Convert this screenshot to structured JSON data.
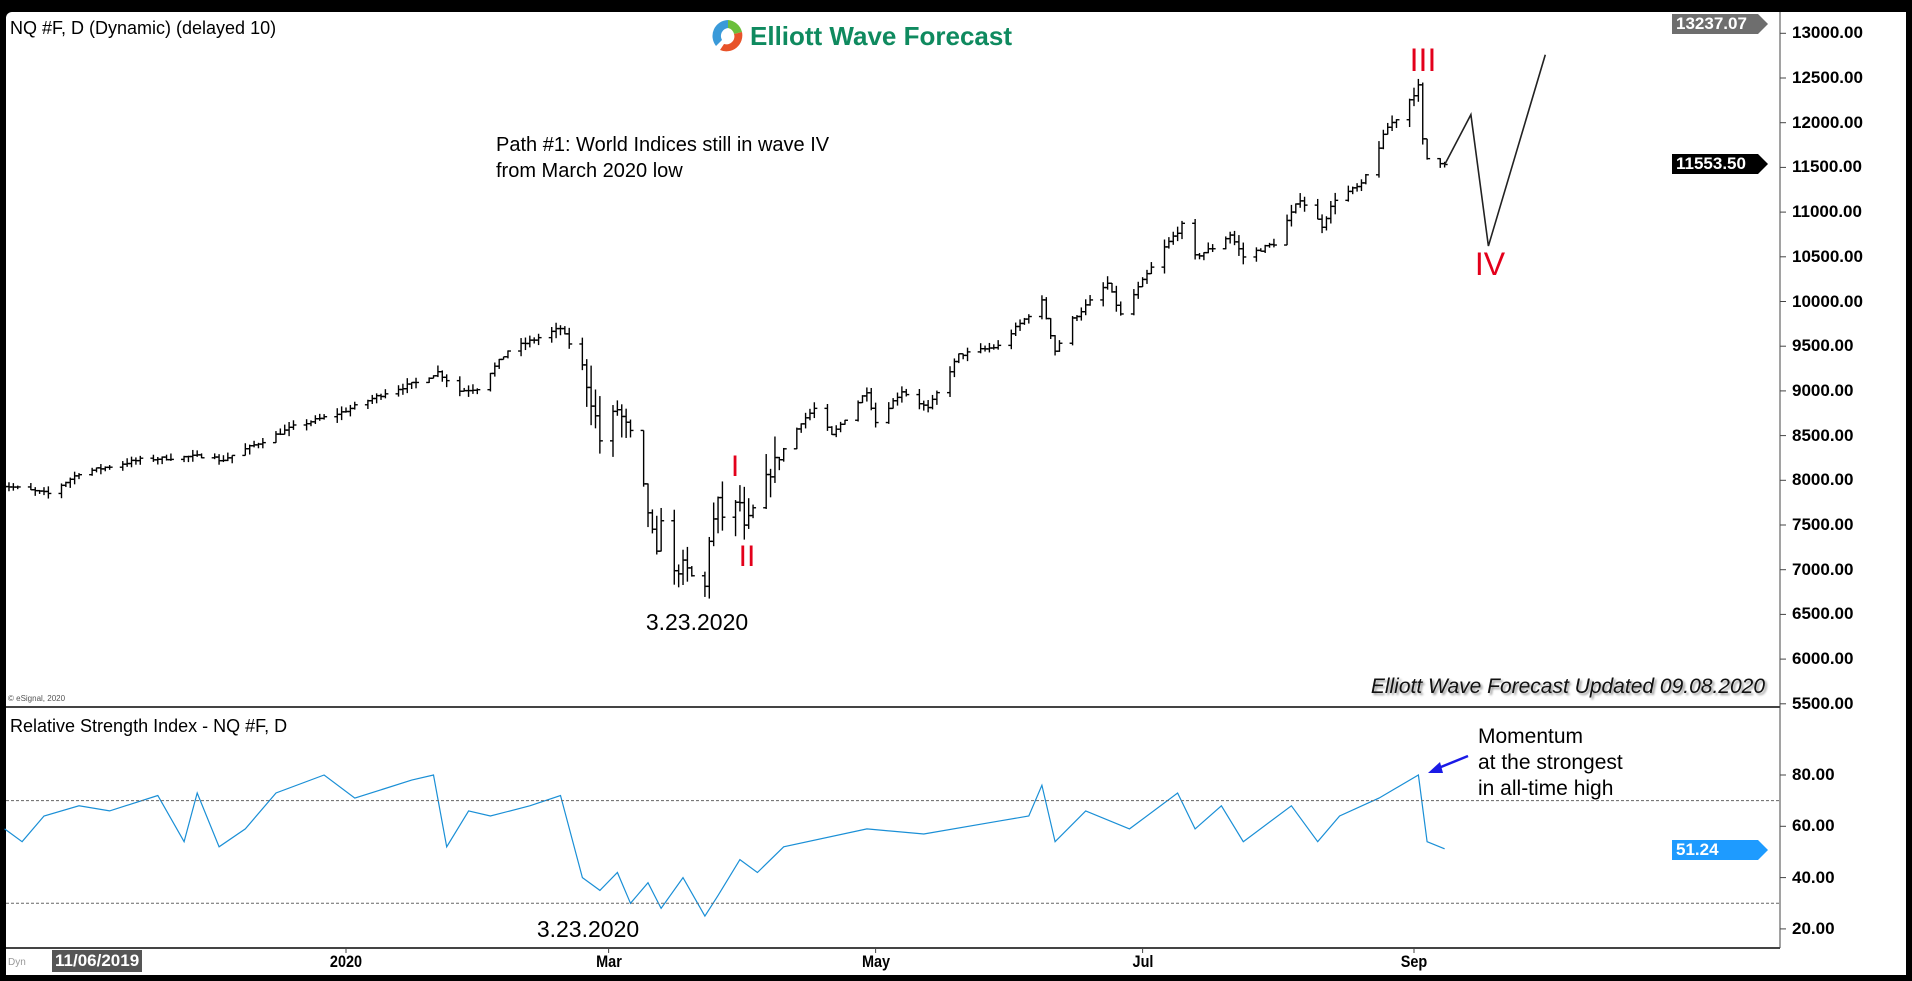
{
  "header": {
    "symbol_title": "NQ #F, D (Dynamic) (delayed 10)",
    "logo_text": "Elliott Wave Forecast",
    "copyright": "© eSignal, 2020",
    "updated_note": "Elliott Wave Forecast Updated 09.08.2020"
  },
  "annotations": {
    "path_line1": "Path #1: World Indices still in wave IV",
    "path_line2": "from March 2020 low",
    "wave_I": "I",
    "wave_II": "II",
    "wave_III": "III",
    "wave_IV": "IV",
    "low_date_price": "3.23.2020",
    "low_date_rsi": "3.23.2020",
    "momentum_line1": "Momentum",
    "momentum_line2": "at the strongest",
    "momentum_line3": "in all-time high"
  },
  "rsi_panel": {
    "title": "Relative Strength Index - NQ #F, D"
  },
  "x_axis": {
    "start_date_box": "11/06/2019",
    "dyn_label": "Dyn",
    "ticks": [
      {
        "label": "2020",
        "date": "2020-01-01"
      },
      {
        "label": "Mar",
        "date": "2020-03-01"
      },
      {
        "label": "May",
        "date": "2020-05-01"
      },
      {
        "label": "Jul",
        "date": "2020-07-01"
      },
      {
        "label": "Sep",
        "date": "2020-09-01"
      }
    ]
  },
  "colors": {
    "bars": "#000000",
    "wave_labels": "#e3001b",
    "rsi_line": "#1a8fd6",
    "rsi_tag": "#1e9bff",
    "arrow": "#1a1ae6",
    "logo_green": "#0f8a5f"
  },
  "chart_data": [
    {
      "type": "ohlc",
      "title": "NQ #F, D (Dynamic) (delayed 10)",
      "y_ticks": [
        "13000.00",
        "12500.00",
        "12000.00",
        "11500.00",
        "11000.00",
        "10500.00",
        "10000.00",
        "9500.00",
        "9000.00",
        "8500.00",
        "8000.00",
        "7500.00",
        "7000.00",
        "6500.00",
        "6000.00",
        "5500.00"
      ],
      "ylim": [
        5500,
        13300
      ],
      "high_tag": "13237.07",
      "last_price_tag": "11553.50",
      "close_anchors": [
        [
          "2019-10-14",
          7950
        ],
        [
          "2019-10-25",
          7850
        ],
        [
          "2019-11-01",
          8080
        ],
        [
          "2019-11-15",
          8230
        ],
        [
          "2019-12-02",
          8280
        ],
        [
          "2019-12-03",
          8210
        ],
        [
          "2019-12-20",
          8600
        ],
        [
          "2019-12-31",
          8760
        ],
        [
          "2020-01-10",
          8980
        ],
        [
          "2020-01-17",
          9090
        ],
        [
          "2020-01-22",
          9210
        ],
        [
          "2020-01-27",
          9000
        ],
        [
          "2020-01-31",
          9030
        ],
        [
          "2020-02-07",
          9450
        ],
        [
          "2020-02-19",
          9700
        ],
        [
          "2020-02-24",
          9280
        ],
        [
          "2020-02-27",
          8700
        ],
        [
          "2020-02-28",
          8450
        ],
        [
          "2020-03-03",
          8800
        ],
        [
          "2020-03-06",
          8500
        ],
        [
          "2020-03-09",
          7900
        ],
        [
          "2020-03-12",
          7150
        ],
        [
          "2020-03-13",
          7600
        ],
        [
          "2020-03-16",
          6950
        ],
        [
          "2020-03-18",
          7050
        ],
        [
          "2020-03-20",
          6920
        ],
        [
          "2020-03-23",
          6800
        ],
        [
          "2020-03-24",
          7350
        ],
        [
          "2020-03-26",
          7750
        ],
        [
          "2020-03-27",
          7600
        ],
        [
          "2020-03-31",
          7750
        ],
        [
          "2020-04-01",
          7450
        ],
        [
          "2020-04-02",
          7550
        ],
        [
          "2020-04-06",
          8000
        ],
        [
          "2020-04-08",
          8200
        ],
        [
          "2020-04-14",
          8650
        ],
        [
          "2020-04-17",
          8800
        ],
        [
          "2020-04-21",
          8500
        ],
        [
          "2020-04-29",
          9000
        ],
        [
          "2020-05-01",
          8650
        ],
        [
          "2020-05-07",
          9000
        ],
        [
          "2020-05-13",
          8800
        ],
        [
          "2020-05-20",
          9400
        ],
        [
          "2020-05-29",
          9500
        ],
        [
          "2020-06-08",
          10000
        ],
        [
          "2020-06-11",
          9450
        ],
        [
          "2020-06-15",
          9800
        ],
        [
          "2020-06-23",
          10200
        ],
        [
          "2020-06-26",
          9850
        ],
        [
          "2020-07-06",
          10600
        ],
        [
          "2020-07-10",
          10850
        ],
        [
          "2020-07-13",
          10500
        ],
        [
          "2020-07-17",
          10600
        ],
        [
          "2020-07-21",
          10750
        ],
        [
          "2020-07-24",
          10500
        ],
        [
          "2020-07-31",
          10650
        ],
        [
          "2020-08-06",
          11150
        ],
        [
          "2020-08-11",
          10850
        ],
        [
          "2020-08-14",
          11150
        ],
        [
          "2020-08-20",
          11300
        ],
        [
          "2020-08-26",
          11950
        ],
        [
          "2020-08-28",
          12050
        ],
        [
          "2020-09-02",
          12400
        ],
        [
          "2020-09-03",
          11800
        ],
        [
          "2020-09-04",
          11600
        ],
        [
          "2020-09-08",
          11553.5
        ]
      ],
      "forecast_path": [
        [
          "2020-09-08",
          11530
        ],
        [
          "2020-09-14",
          12090
        ],
        [
          "2020-09-18",
          10620
        ],
        [
          "2020-10-01",
          12760
        ]
      ]
    },
    {
      "type": "line",
      "title": "Relative Strength Index - NQ #F, D",
      "y_ticks": [
        "80.00",
        "60.00",
        "40.00",
        "20.00"
      ],
      "ylim": [
        12,
        100
      ],
      "reference_lines": [
        70,
        30
      ],
      "last_value_tag": "51.24",
      "points": [
        [
          "2019-10-15",
          59
        ],
        [
          "2019-10-19",
          54
        ],
        [
          "2019-10-24",
          64
        ],
        [
          "2019-11-01",
          68
        ],
        [
          "2019-11-08",
          66
        ],
        [
          "2019-11-19",
          72
        ],
        [
          "2019-11-25",
          54
        ],
        [
          "2019-11-28",
          73
        ],
        [
          "2019-12-03",
          52
        ],
        [
          "2019-12-09",
          59
        ],
        [
          "2019-12-16",
          73
        ],
        [
          "2019-12-27",
          80
        ],
        [
          "2020-01-03",
          71
        ],
        [
          "2020-01-16",
          78
        ],
        [
          "2020-01-21",
          80
        ],
        [
          "2020-01-24",
          52
        ],
        [
          "2020-01-29",
          66
        ],
        [
          "2020-02-03",
          64
        ],
        [
          "2020-02-12",
          68
        ],
        [
          "2020-02-19",
          72
        ],
        [
          "2020-02-24",
          40
        ],
        [
          "2020-02-28",
          35
        ],
        [
          "2020-03-03",
          42
        ],
        [
          "2020-03-06",
          30
        ],
        [
          "2020-03-10",
          38
        ],
        [
          "2020-03-13",
          28
        ],
        [
          "2020-03-18",
          40
        ],
        [
          "2020-03-23",
          25
        ],
        [
          "2020-03-26",
          33
        ],
        [
          "2020-03-31",
          47
        ],
        [
          "2020-04-04",
          42
        ],
        [
          "2020-04-10",
          52
        ],
        [
          "2020-04-29",
          59
        ],
        [
          "2020-05-12",
          57
        ],
        [
          "2020-05-29",
          62
        ],
        [
          "2020-06-05",
          64
        ],
        [
          "2020-06-08",
          76
        ],
        [
          "2020-06-11",
          54
        ],
        [
          "2020-06-18",
          66
        ],
        [
          "2020-06-28",
          59
        ],
        [
          "2020-07-09",
          73
        ],
        [
          "2020-07-13",
          59
        ],
        [
          "2020-07-19",
          68
        ],
        [
          "2020-07-24",
          54
        ],
        [
          "2020-08-04",
          68
        ],
        [
          "2020-08-10",
          54
        ],
        [
          "2020-08-15",
          64
        ],
        [
          "2020-08-24",
          71
        ],
        [
          "2020-09-02",
          80
        ],
        [
          "2020-09-04",
          54
        ],
        [
          "2020-09-08",
          51.24
        ]
      ]
    }
  ]
}
